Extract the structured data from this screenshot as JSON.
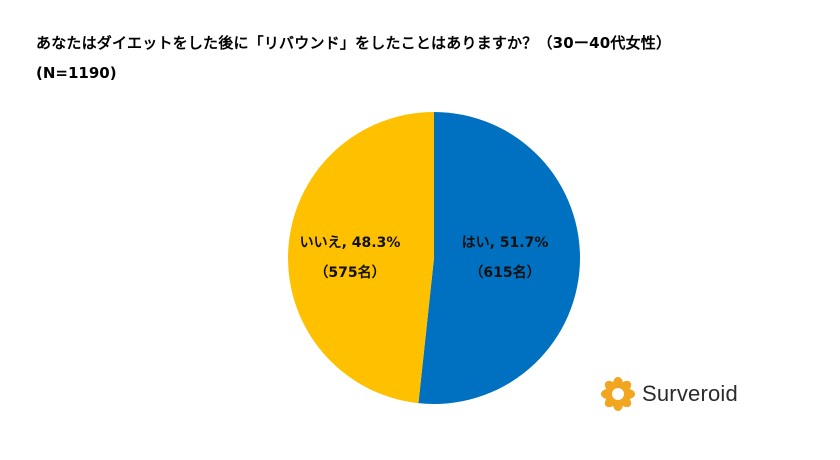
{
  "header": {
    "title": "あなたはダイエットをした後に「リバウンド」をしたことはありますか？（30ー40代女性）",
    "sample": "(N=1190)"
  },
  "chart_data": {
    "type": "pie",
    "title": "あなたはダイエットをした後に「リバウンド」をしたことはありますか？（30ー40代女性）",
    "slices": [
      {
        "label": "はい",
        "percent": 51.7,
        "count": 615,
        "color": "#0070C0",
        "line1": "はい, 51.7%",
        "line2": "（615名）"
      },
      {
        "label": "いいえ",
        "percent": 48.3,
        "count": 575,
        "color": "#FFC000",
        "line1": "いいえ, 48.3%",
        "line2": "（575名）"
      }
    ],
    "start_angle": "12 o'clock",
    "direction": "clockwise"
  },
  "brand": {
    "name": "Surveroid",
    "color": "#F2A51F"
  }
}
